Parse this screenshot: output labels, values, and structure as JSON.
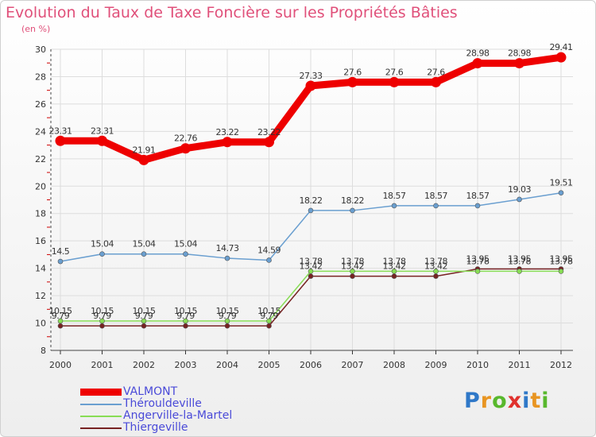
{
  "title": "Evolution du Taux de Taxe Foncière sur les Propriétés Bâties",
  "unit": "(en %)",
  "logo": {
    "text": "Proxiti",
    "letter_colors": [
      "#2f78c8",
      "#e89522",
      "#58b82d",
      "#e0312d",
      "#2f78c8",
      "#e89522",
      "#58b82d"
    ]
  },
  "chart_data": {
    "type": "line",
    "title": "Evolution du Taux de Taxe Foncière sur les Propriétés Bâties",
    "ylabel": "(en %)",
    "xlabel": "",
    "categories": [
      "2000",
      "2001",
      "2002",
      "2003",
      "2004",
      "2005",
      "2006",
      "2007",
      "2008",
      "2009",
      "2010",
      "2011",
      "2012"
    ],
    "ylim": [
      8,
      30
    ],
    "yticks": [
      "8",
      "10",
      "12",
      "14",
      "16",
      "18",
      "20",
      "22",
      "24",
      "26",
      "28",
      "30"
    ],
    "grid": true,
    "legend_position": "bottom-left",
    "series": [
      {
        "name": "VALMONT",
        "color": "#ee0000",
        "line_width": "thick",
        "values": [
          23.31,
          23.31,
          21.91,
          22.76,
          23.22,
          23.22,
          27.33,
          27.6,
          27.6,
          27.6,
          28.98,
          28.98,
          29.41
        ],
        "labels": [
          "23.31",
          "23.31",
          "21.91",
          "22.76",
          "23.22",
          "23.22",
          "27.33",
          "27.6",
          "27.6",
          "27.6",
          "28.98",
          "28.98",
          "29.41"
        ]
      },
      {
        "name": "Thérouldeville",
        "color": "#6a9fd0",
        "line_width": "thin",
        "values": [
          14.5,
          15.04,
          15.04,
          15.04,
          14.73,
          14.59,
          18.22,
          18.22,
          18.57,
          18.57,
          18.57,
          19.03,
          19.51
        ],
        "labels": [
          "14.5",
          "15.04",
          "15.04",
          "15.04",
          "14.73",
          "14.59",
          "18.22",
          "18.22",
          "18.57",
          "18.57",
          "18.57",
          "19.03",
          "19.51"
        ]
      },
      {
        "name": "Angerville-la-Martel",
        "color": "#88dd55",
        "line_width": "thin",
        "values": [
          10.15,
          10.15,
          10.15,
          10.15,
          10.15,
          10.15,
          13.78,
          13.78,
          13.78,
          13.78,
          13.78,
          13.78,
          13.78
        ],
        "labels": [
          "10.15",
          "10.15",
          "10.15",
          "10.15",
          "10.15",
          "10.15",
          "13.78",
          "13.78",
          "13.78",
          "13.78",
          "13.78",
          "13.78",
          "13.78"
        ]
      },
      {
        "name": "Thiergeville",
        "color": "#772222",
        "line_width": "thin",
        "values": [
          9.79,
          9.79,
          9.79,
          9.79,
          9.79,
          9.79,
          13.42,
          13.42,
          13.42,
          13.42,
          13.95,
          13.95,
          13.95
        ],
        "labels": [
          "9.79",
          "9.79",
          "9.79",
          "9.79",
          "9.79",
          "9.79",
          "13.42",
          "13.42",
          "13.42",
          "13.42",
          "13.95",
          "13.95",
          "13.95"
        ]
      }
    ]
  }
}
